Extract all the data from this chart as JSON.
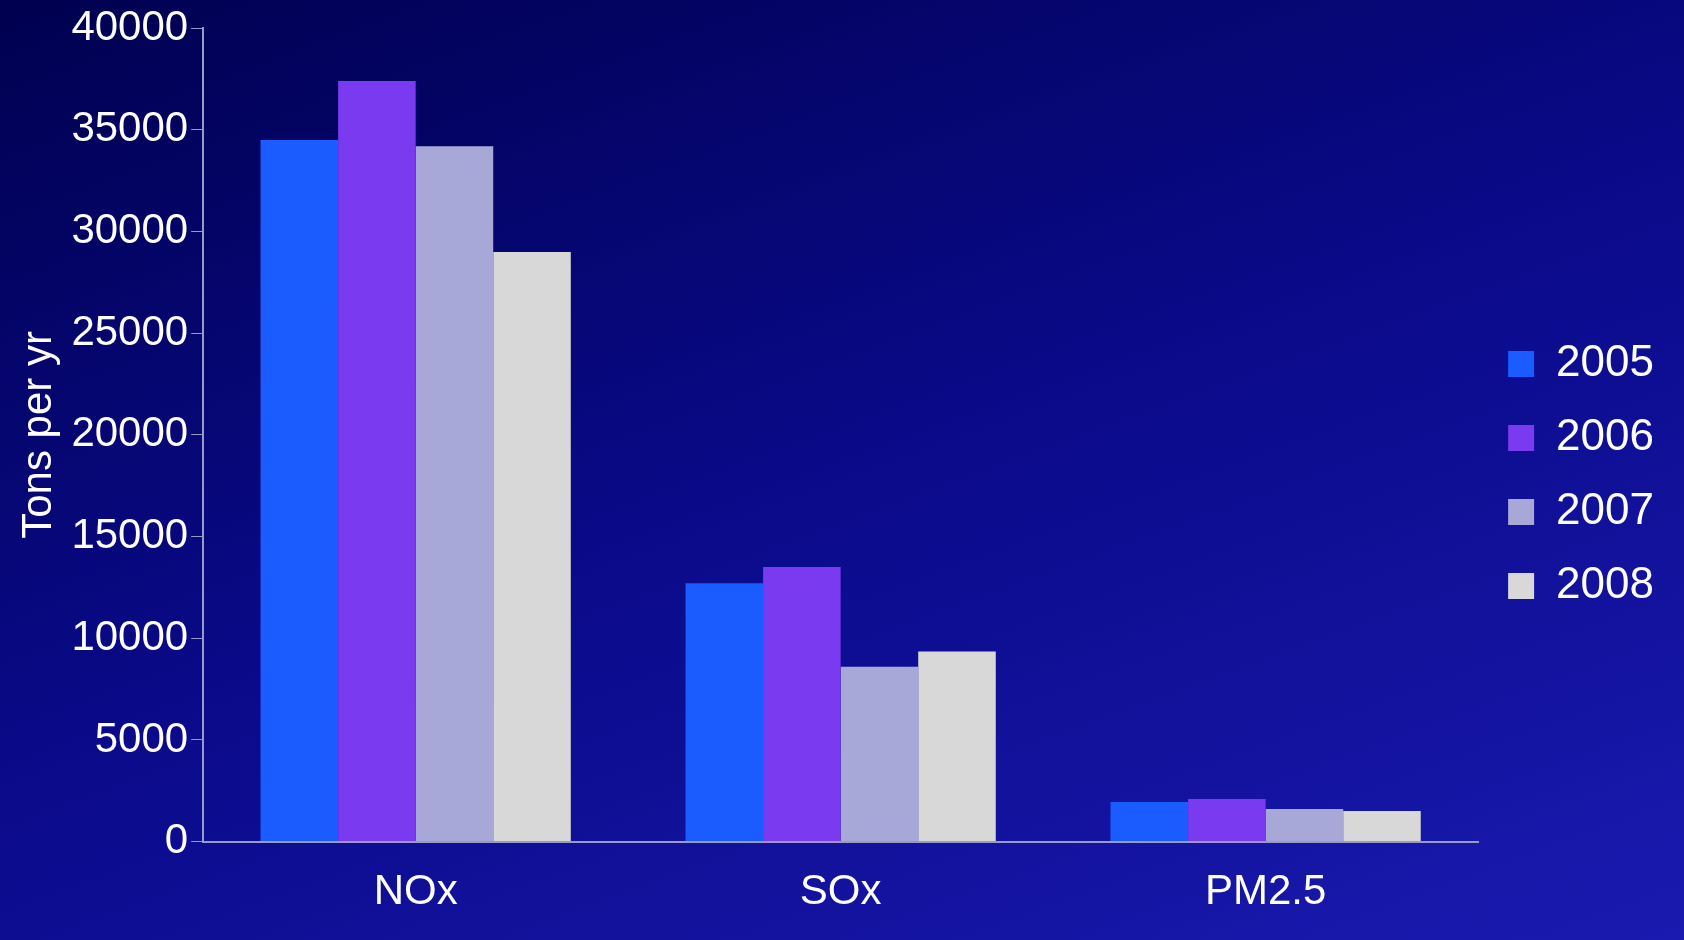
{
  "chart_data": {
    "type": "bar",
    "ylabel": "Tons per yr",
    "categories": [
      "NOx",
      "SOx",
      "PM2.5"
    ],
    "series": [
      {
        "name": "2005",
        "color": "#1a5cff",
        "values": [
          34500,
          12700,
          1950
        ]
      },
      {
        "name": "2006",
        "color": "#7a3af0",
        "values": [
          37400,
          13500,
          2100
        ]
      },
      {
        "name": "2007",
        "color": "#a8a8d8",
        "values": [
          34200,
          8600,
          1600
        ]
      },
      {
        "name": "2008",
        "color": "#d8d8d8",
        "values": [
          29000,
          9350,
          1500
        ]
      }
    ],
    "ylim": [
      0,
      40000
    ],
    "yticks": [
      0,
      5000,
      10000,
      15000,
      20000,
      25000,
      30000,
      35000,
      40000
    ],
    "grid": false,
    "legend": "right"
  }
}
